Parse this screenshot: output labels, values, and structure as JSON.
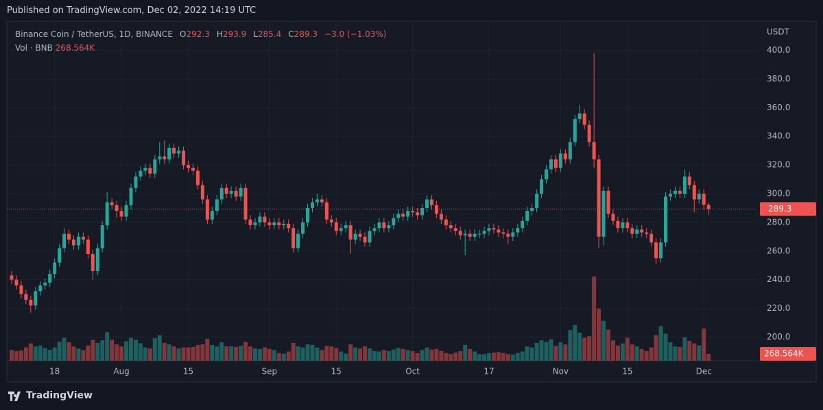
{
  "published": "Published on TradingView.com, Dec 02, 2022 14:19 UTC",
  "footer_brand": "TradingView",
  "chart_data": {
    "type": "candlestick",
    "title": "Binance Coin / TetherUS, 1D, BINANCE",
    "ohlc_labels": [
      "O",
      "H",
      "L",
      "C"
    ],
    "change_label": "−3.0 (−1.03%)",
    "y_unit": "USDT",
    "up_color": "#26a69a",
    "down_color": "#ef5350",
    "x": [
      "2022-07-09",
      "2022-07-10",
      "2022-07-11",
      "2022-07-12",
      "2022-07-13",
      "2022-07-14",
      "2022-07-15",
      "2022-07-16",
      "2022-07-17",
      "2022-07-18",
      "2022-07-19",
      "2022-07-20",
      "2022-07-21",
      "2022-07-22",
      "2022-07-23",
      "2022-07-24",
      "2022-07-25",
      "2022-07-26",
      "2022-07-27",
      "2022-07-28",
      "2022-07-29",
      "2022-07-30",
      "2022-07-31",
      "2022-08-01",
      "2022-08-02",
      "2022-08-03",
      "2022-08-04",
      "2022-08-05",
      "2022-08-06",
      "2022-08-07",
      "2022-08-08",
      "2022-08-09",
      "2022-08-10",
      "2022-08-11",
      "2022-08-12",
      "2022-08-13",
      "2022-08-14",
      "2022-08-15",
      "2022-08-16",
      "2022-08-17",
      "2022-08-18",
      "2022-08-19",
      "2022-08-20",
      "2022-08-21",
      "2022-08-22",
      "2022-08-23",
      "2022-08-24",
      "2022-08-25",
      "2022-08-26",
      "2022-08-27",
      "2022-08-28",
      "2022-08-29",
      "2022-08-30",
      "2022-08-31",
      "2022-09-01",
      "2022-09-02",
      "2022-09-03",
      "2022-09-04",
      "2022-09-05",
      "2022-09-06",
      "2022-09-07",
      "2022-09-08",
      "2022-09-09",
      "2022-09-10",
      "2022-09-11",
      "2022-09-12",
      "2022-09-13",
      "2022-09-14",
      "2022-09-15",
      "2022-09-16",
      "2022-09-17",
      "2022-09-18",
      "2022-09-19",
      "2022-09-20",
      "2022-09-21",
      "2022-09-22",
      "2022-09-23",
      "2022-09-24",
      "2022-09-25",
      "2022-09-26",
      "2022-09-27",
      "2022-09-28",
      "2022-09-29",
      "2022-09-30",
      "2022-10-01",
      "2022-10-02",
      "2022-10-03",
      "2022-10-04",
      "2022-10-05",
      "2022-10-06",
      "2022-10-07",
      "2022-10-08",
      "2022-10-09",
      "2022-10-10",
      "2022-10-11",
      "2022-10-12",
      "2022-10-13",
      "2022-10-14",
      "2022-10-15",
      "2022-10-16",
      "2022-10-17",
      "2022-10-18",
      "2022-10-19",
      "2022-10-20",
      "2022-10-21",
      "2022-10-22",
      "2022-10-23",
      "2022-10-24",
      "2022-10-25",
      "2022-10-26",
      "2022-10-27",
      "2022-10-28",
      "2022-10-29",
      "2022-10-30",
      "2022-10-31",
      "2022-11-01",
      "2022-11-02",
      "2022-11-03",
      "2022-11-04",
      "2022-11-05",
      "2022-11-06",
      "2022-11-07",
      "2022-11-08",
      "2022-11-09",
      "2022-11-10",
      "2022-11-11",
      "2022-11-12",
      "2022-11-13",
      "2022-11-14",
      "2022-11-15",
      "2022-11-16",
      "2022-11-17",
      "2022-11-18",
      "2022-11-19",
      "2022-11-20",
      "2022-11-21",
      "2022-11-22",
      "2022-11-23",
      "2022-11-24",
      "2022-11-25",
      "2022-11-26",
      "2022-11-27",
      "2022-11-28",
      "2022-11-29",
      "2022-11-30",
      "2022-12-01",
      "2022-12-02"
    ],
    "open": [
      243,
      240,
      236,
      230,
      226,
      222,
      232,
      236,
      238,
      244,
      252,
      262,
      272,
      268,
      264,
      270,
      268,
      258,
      246,
      262,
      278,
      294,
      292,
      288,
      284,
      292,
      304,
      312,
      316,
      318,
      314,
      324,
      326,
      324,
      332,
      328,
      330,
      320,
      318,
      316,
      306,
      296,
      282,
      288,
      296,
      304,
      300,
      302,
      298,
      304,
      282,
      278,
      280,
      284,
      280,
      278,
      280,
      278,
      279,
      276,
      262,
      272,
      280,
      290,
      294,
      296,
      294,
      282,
      280,
      274,
      276,
      278,
      268,
      272,
      270,
      266,
      274,
      276,
      280,
      276,
      278,
      283,
      286,
      284,
      288,
      287,
      285,
      290,
      296,
      292,
      286,
      282,
      278,
      276,
      274,
      271,
      272,
      270,
      272,
      272,
      274,
      276,
      275,
      273,
      272,
      270,
      273,
      276,
      281,
      288,
      290,
      300,
      310,
      317,
      324,
      318,
      328,
      324,
      336,
      352,
      356,
      348,
      336,
      324,
      270,
      302,
      286,
      281,
      276,
      280,
      276,
      272,
      275,
      273,
      272,
      266,
      255,
      266,
      298,
      300,
      302,
      300,
      312,
      306,
      296,
      300,
      292.3
    ],
    "high": [
      246,
      243,
      239,
      233,
      229,
      235,
      239,
      241,
      247,
      255,
      265,
      276,
      275,
      271,
      273,
      273,
      271,
      261,
      265,
      281,
      301,
      297,
      295,
      291,
      295,
      307,
      315,
      319,
      321,
      321,
      327,
      336,
      337,
      335,
      335,
      333,
      333,
      323,
      321,
      319,
      309,
      299,
      291,
      299,
      307,
      307,
      305,
      305,
      307,
      307,
      285,
      283,
      287,
      287,
      283,
      283,
      283,
      282,
      282,
      279,
      275,
      283,
      293,
      297,
      300,
      299,
      297,
      285,
      283,
      279,
      281,
      281,
      275,
      275,
      273,
      277,
      279,
      283,
      283,
      281,
      286,
      289,
      289,
      291,
      291,
      290,
      293,
      299,
      299,
      295,
      289,
      285,
      281,
      279,
      277,
      275,
      275,
      275,
      275,
      277,
      279,
      279,
      278,
      276,
      275,
      276,
      279,
      284,
      291,
      293,
      303,
      313,
      320,
      327,
      327,
      331,
      331,
      339,
      355,
      362,
      359,
      351,
      398,
      327,
      305,
      305,
      289,
      284,
      283,
      283,
      279,
      278,
      278,
      276,
      275,
      269,
      269,
      301,
      303,
      305,
      305,
      317,
      315,
      309,
      303,
      303,
      293.9
    ],
    "low": [
      237,
      233,
      227,
      223,
      217,
      219,
      229,
      233,
      235,
      241,
      249,
      259,
      265,
      261,
      261,
      265,
      255,
      240,
      243,
      259,
      275,
      289,
      283,
      281,
      281,
      289,
      301,
      309,
      313,
      311,
      311,
      321,
      321,
      321,
      325,
      325,
      317,
      315,
      313,
      303,
      293,
      279,
      279,
      285,
      293,
      297,
      297,
      295,
      295,
      279,
      275,
      275,
      277,
      277,
      275,
      275,
      275,
      275,
      273,
      259,
      259,
      269,
      277,
      287,
      291,
      291,
      279,
      277,
      271,
      271,
      273,
      258,
      265,
      267,
      263,
      263,
      271,
      273,
      273,
      273,
      275,
      280,
      281,
      281,
      284,
      282,
      282,
      287,
      289,
      283,
      279,
      275,
      273,
      271,
      268,
      257,
      267,
      267,
      269,
      269,
      271,
      272,
      270,
      269,
      265,
      267,
      270,
      273,
      278,
      285,
      287,
      297,
      307,
      314,
      315,
      315,
      321,
      321,
      333,
      349,
      345,
      333,
      318,
      262,
      264,
      283,
      278,
      273,
      273,
      273,
      269,
      269,
      270,
      269,
      263,
      251,
      252,
      263,
      295,
      297,
      297,
      297,
      303,
      287,
      293,
      289,
      285.4
    ],
    "close": [
      240,
      236,
      230,
      226,
      222,
      232,
      236,
      238,
      244,
      252,
      262,
      272,
      268,
      264,
      270,
      268,
      258,
      246,
      262,
      278,
      294,
      292,
      288,
      284,
      292,
      304,
      312,
      316,
      318,
      314,
      324,
      326,
      324,
      332,
      328,
      330,
      320,
      318,
      316,
      306,
      296,
      282,
      288,
      296,
      304,
      300,
      302,
      298,
      304,
      282,
      278,
      280,
      284,
      280,
      278,
      280,
      278,
      279,
      276,
      262,
      272,
      280,
      290,
      294,
      296,
      294,
      282,
      280,
      274,
      276,
      278,
      268,
      272,
      270,
      266,
      274,
      276,
      280,
      276,
      278,
      283,
      286,
      284,
      288,
      287,
      285,
      290,
      296,
      292,
      286,
      282,
      278,
      276,
      274,
      271,
      272,
      270,
      272,
      272,
      274,
      276,
      275,
      273,
      272,
      270,
      273,
      276,
      281,
      288,
      290,
      300,
      310,
      317,
      324,
      318,
      328,
      324,
      336,
      352,
      356,
      348,
      336,
      324,
      270,
      302,
      286,
      281,
      276,
      280,
      276,
      272,
      275,
      273,
      272,
      266,
      255,
      266,
      298,
      300,
      302,
      300,
      312,
      306,
      296,
      300,
      292.3,
      289.3
    ],
    "volume": {
      "name": "Vol · BNB",
      "last_label": "268.564K",
      "values": [
        420,
        380,
        400,
        520,
        680,
        560,
        600,
        500,
        430,
        520,
        750,
        900,
        720,
        560,
        480,
        420,
        600,
        820,
        700,
        800,
        1120,
        820,
        640,
        560,
        760,
        900,
        820,
        680,
        520,
        480,
        880,
        1000,
        700,
        640,
        560,
        480,
        520,
        520,
        540,
        620,
        640,
        860,
        620,
        560,
        720,
        560,
        560,
        540,
        580,
        740,
        560,
        480,
        460,
        520,
        460,
        420,
        300,
        280,
        360,
        700,
        560,
        520,
        640,
        620,
        520,
        420,
        580,
        560,
        500,
        360,
        280,
        640,
        520,
        480,
        560,
        480,
        380,
        360,
        420,
        380,
        440,
        500,
        460,
        420,
        380,
        300,
        420,
        520,
        440,
        460,
        380,
        300,
        260,
        320,
        380,
        620,
        460,
        360,
        260,
        260,
        300,
        320,
        340,
        300,
        260,
        240,
        300,
        360,
        560,
        520,
        700,
        800,
        740,
        840,
        580,
        720,
        640,
        1200,
        1400,
        1100,
        900,
        960,
        3300,
        2040,
        1560,
        1220,
        800,
        600,
        680,
        900,
        640,
        560,
        460,
        380,
        520,
        1000,
        1360,
        1060,
        720,
        560,
        540,
        920,
        780,
        680,
        600,
        1260,
        268.564
      ]
    },
    "ylim": [
      183.5,
      420.3
    ],
    "yticks": [
      {
        "value": 200,
        "label": "200.0"
      },
      {
        "value": 220,
        "label": "220.0"
      },
      {
        "value": 240,
        "label": "240.0"
      },
      {
        "value": 260,
        "label": "260.0"
      },
      {
        "value": 280,
        "label": "280.0"
      },
      {
        "value": 300,
        "label": "300.0"
      },
      {
        "value": 320,
        "label": "320.0"
      },
      {
        "value": 340,
        "label": "340.0"
      },
      {
        "value": 360,
        "label": "360.0"
      },
      {
        "value": 380,
        "label": "380.0"
      },
      {
        "value": 400,
        "label": "400.0"
      }
    ],
    "xticks": [
      {
        "value": "2022-07-18",
        "label": "18"
      },
      {
        "value": "2022-08-01",
        "label": "Aug"
      },
      {
        "value": "2022-08-15",
        "label": "15"
      },
      {
        "value": "2022-09-01",
        "label": "Sep"
      },
      {
        "value": "2022-09-15",
        "label": "15"
      },
      {
        "value": "2022-10-01",
        "label": "Oct"
      },
      {
        "value": "2022-10-17",
        "label": "17"
      },
      {
        "value": "2022-11-01",
        "label": "Nov"
      },
      {
        "value": "2022-11-15",
        "label": "15"
      },
      {
        "value": "2022-12-01",
        "label": "Dec"
      }
    ],
    "grid": true
  }
}
